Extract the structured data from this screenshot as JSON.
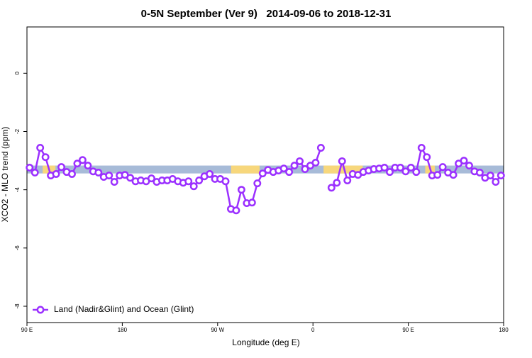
{
  "chart_data": {
    "type": "line",
    "title": "0-5N September (Ver 9)   2014-09-06 to 2018-12-31",
    "x_label": "Longitude (deg E)",
    "y_label": "XCO2 - MLO trend (ppm)",
    "x": [
      92.5,
      97.5,
      102.5,
      107.5,
      112.5,
      117.5,
      122.5,
      127.5,
      132.5,
      137.5,
      142.5,
      147.5,
      152.5,
      157.5,
      162.5,
      167.5,
      172.5,
      177.5,
      182.5,
      187.5,
      192.5,
      197.5,
      202.5,
      207.5,
      212.5,
      217.5,
      222.5,
      227.5,
      232.5,
      237.5,
      242.5,
      247.5,
      252.5,
      257.5,
      262.5,
      267.5,
      272.5,
      277.5,
      282.5,
      287.5,
      292.5,
      297.5,
      302.5,
      307.5,
      312.5,
      317.5,
      322.5,
      327.5,
      332.5,
      337.5,
      342.5,
      347.5,
      352.5,
      357.5,
      362.5,
      367.5,
      372.5,
      377.5,
      382.5,
      387.5,
      392.5,
      397.5,
      402.5,
      407.5,
      412.5,
      417.5,
      422.5,
      427.5,
      432.5,
      437.5,
      442.5,
      447.5,
      452.5,
      457.5,
      462.5,
      467.5,
      472.5,
      477.5,
      482.5,
      487.5,
      492.5,
      497.5,
      502.5,
      507.5,
      512.5,
      517.5,
      522.5,
      527.5,
      532.5,
      537.5
    ],
    "series": [
      {
        "name": "Land (Nadir&Glint) and Ocean (Glint)",
        "color": "#9b30ff",
        "values": [
          -3.24,
          -3.41,
          -2.56,
          -2.88,
          -3.51,
          -3.46,
          -3.22,
          -3.39,
          -3.46,
          -3.1,
          -2.98,
          -3.17,
          -3.37,
          -3.41,
          -3.56,
          -3.51,
          -3.73,
          -3.51,
          -3.49,
          -3.59,
          -3.71,
          -3.68,
          -3.71,
          -3.61,
          -3.73,
          -3.68,
          -3.68,
          -3.63,
          -3.71,
          -3.76,
          -3.71,
          -3.88,
          -3.68,
          -3.54,
          -3.46,
          -3.63,
          -3.63,
          -3.71,
          -4.66,
          -4.71,
          -4.0,
          -4.46,
          -4.44,
          -3.78,
          -3.44,
          -3.32,
          -3.39,
          -3.34,
          -3.27,
          -3.39,
          -3.17,
          -3.02,
          -3.29,
          -3.17,
          -3.07,
          -2.56,
          null,
          -3.93,
          -3.76,
          -3.02,
          -3.68,
          -3.46,
          -3.49,
          -3.39,
          -3.34,
          -3.29,
          -3.27,
          -3.24,
          -3.39,
          -3.24,
          -3.24,
          -3.37,
          -3.24,
          -3.39,
          -2.56,
          -2.88,
          -3.51,
          -3.49,
          -3.22,
          -3.41,
          -3.49,
          -3.1,
          -3.0,
          -3.17,
          -3.37,
          -3.41,
          -3.59,
          -3.51,
          -3.73,
          -3.51
        ]
      }
    ],
    "xlim": [
      90,
      540
    ],
    "ylim": [
      -8.56,
      1.59
    ],
    "xticks": [
      {
        "value": 90,
        "label": "90 E"
      },
      180,
      {
        "value": 270,
        "label": "90 W"
      },
      {
        "value": 360,
        "label": "0"
      },
      {
        "value": 450,
        "label": "90 E"
      },
      {
        "value": 540,
        "label": "180"
      }
    ],
    "yticks": [
      0,
      -2,
      -4,
      -6,
      -8
    ],
    "band": {
      "ylim": [
        -3.44,
        -3.17
      ],
      "ocean_color": "#a7bbd8",
      "land_color": "#f7d77c",
      "land_segments": [
        [
          104.8,
          116.9
        ],
        [
          282.7,
          309.6
        ],
        [
          370,
          407
        ],
        [
          466,
          475
        ]
      ]
    },
    "legend": "lower left"
  }
}
